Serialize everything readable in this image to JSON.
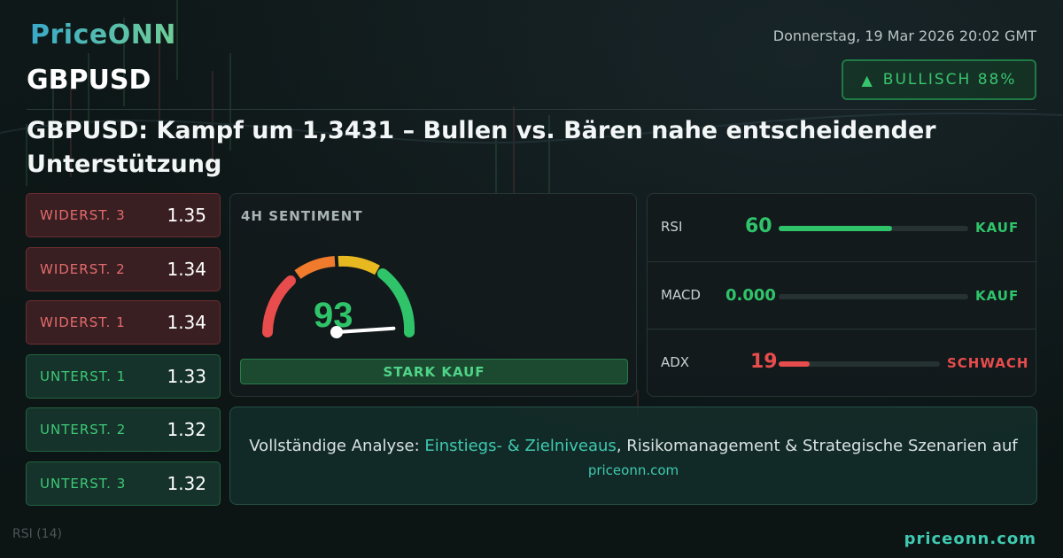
{
  "brand": {
    "logo_text": "PriceONN",
    "footer_link": "priceonn.com"
  },
  "header": {
    "datetime": "Donnerstag, 19 Mar 2026 20:02 GMT",
    "symbol": "GBPUSD",
    "badge": {
      "icon": "triangle-up-icon",
      "label": "BULLISCH 88%"
    },
    "headline": "GBPUSD: Kampf um 1,3431 – Bullen vs. Bären nahe entscheidender Unterstützung"
  },
  "levels": [
    {
      "label": "WIDERST. 3",
      "value": "1.35",
      "kind": "res"
    },
    {
      "label": "WIDERST. 2",
      "value": "1.34",
      "kind": "res"
    },
    {
      "label": "WIDERST. 1",
      "value": "1.34",
      "kind": "res"
    },
    {
      "label": "UNTERST. 1",
      "value": "1.33",
      "kind": "sup"
    },
    {
      "label": "UNTERST. 2",
      "value": "1.32",
      "kind": "sup"
    },
    {
      "label": "UNTERST. 3",
      "value": "1.32",
      "kind": "sup"
    }
  ],
  "sentiment": {
    "title": "4H SENTIMENT",
    "score": "93",
    "score_value": 93,
    "verdict": "STARK KAUF"
  },
  "indicators": [
    {
      "name": "RSI",
      "value": "60",
      "level": 0.6,
      "signal": "KAUF",
      "color": "#2fc46a"
    },
    {
      "name": "MACD",
      "value": "0.000",
      "level": 0.0,
      "signal": "KAUF",
      "color": "#2fc46a"
    },
    {
      "name": "ADX",
      "value": "19",
      "level": 0.19,
      "signal": "SCHWACH",
      "color": "#e84c4c"
    }
  ],
  "cta": {
    "prefix": "Vollständige Analyse: ",
    "highlight": "Einstiegs- & Zielniveaus",
    "suffix": ", Risikomanagement & Strategische Szenarien auf",
    "link": "priceonn.com"
  },
  "background": {
    "rsi_label": "RSI  (14)"
  },
  "colors": {
    "bull": "#39c46e",
    "bear": "#e46b6b",
    "accent": "#3ec9b0"
  }
}
